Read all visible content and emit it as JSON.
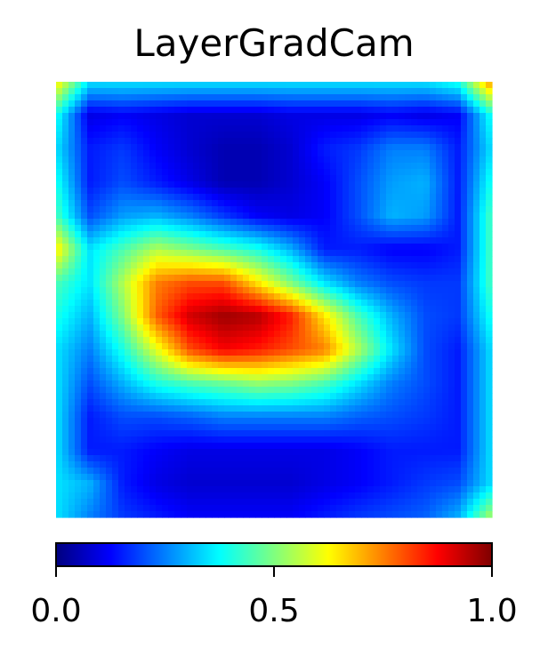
{
  "chart_data": {
    "type": "heatmap",
    "title": "LayerGradCam",
    "colormap": "jet",
    "colormap_stops": [
      "#00007f",
      "#0000ff",
      "#007fff",
      "#00ffff",
      "#7fff7f",
      "#ffff00",
      "#ff7f00",
      "#ff0000",
      "#7f0000"
    ],
    "value_range": [
      0,
      1
    ],
    "colorbar": {
      "orientation": "horizontal",
      "placement": "bottom",
      "ticks": [
        0.0,
        0.5,
        1.0
      ],
      "tick_labels": [
        "0.0",
        "0.5",
        "1.0"
      ]
    },
    "grid_size": [
      14,
      14
    ],
    "values": [
      [
        0.65,
        0.35,
        0.35,
        0.35,
        0.35,
        0.35,
        0.35,
        0.35,
        0.35,
        0.35,
        0.35,
        0.35,
        0.4,
        0.75
      ],
      [
        0.4,
        0.1,
        0.12,
        0.1,
        0.08,
        0.08,
        0.08,
        0.1,
        0.1,
        0.1,
        0.12,
        0.1,
        0.12,
        0.4
      ],
      [
        0.35,
        0.15,
        0.18,
        0.12,
        0.08,
        0.05,
        0.05,
        0.08,
        0.15,
        0.18,
        0.25,
        0.25,
        0.15,
        0.35
      ],
      [
        0.4,
        0.15,
        0.2,
        0.15,
        0.1,
        0.05,
        0.05,
        0.08,
        0.12,
        0.2,
        0.28,
        0.3,
        0.15,
        0.4
      ],
      [
        0.45,
        0.2,
        0.28,
        0.3,
        0.25,
        0.18,
        0.12,
        0.1,
        0.12,
        0.2,
        0.3,
        0.28,
        0.15,
        0.45
      ],
      [
        0.65,
        0.35,
        0.45,
        0.55,
        0.5,
        0.45,
        0.4,
        0.3,
        0.15,
        0.15,
        0.12,
        0.12,
        0.15,
        0.45
      ],
      [
        0.45,
        0.35,
        0.55,
        0.75,
        0.8,
        0.8,
        0.65,
        0.5,
        0.35,
        0.25,
        0.2,
        0.18,
        0.18,
        0.45
      ],
      [
        0.4,
        0.3,
        0.5,
        0.78,
        0.92,
        0.97,
        0.95,
        0.85,
        0.65,
        0.45,
        0.3,
        0.2,
        0.18,
        0.4
      ],
      [
        0.35,
        0.25,
        0.4,
        0.6,
        0.8,
        0.88,
        0.85,
        0.8,
        0.75,
        0.55,
        0.35,
        0.2,
        0.15,
        0.35
      ],
      [
        0.35,
        0.2,
        0.3,
        0.4,
        0.45,
        0.48,
        0.52,
        0.5,
        0.45,
        0.35,
        0.25,
        0.2,
        0.15,
        0.35
      ],
      [
        0.35,
        0.15,
        0.2,
        0.2,
        0.22,
        0.25,
        0.25,
        0.25,
        0.25,
        0.22,
        0.2,
        0.18,
        0.15,
        0.35
      ],
      [
        0.35,
        0.15,
        0.15,
        0.12,
        0.1,
        0.1,
        0.1,
        0.1,
        0.1,
        0.12,
        0.15,
        0.15,
        0.15,
        0.35
      ],
      [
        0.35,
        0.3,
        0.15,
        0.1,
        0.08,
        0.08,
        0.08,
        0.08,
        0.1,
        0.12,
        0.15,
        0.18,
        0.2,
        0.35
      ],
      [
        0.35,
        0.25,
        0.18,
        0.15,
        0.12,
        0.12,
        0.12,
        0.12,
        0.15,
        0.18,
        0.2,
        0.22,
        0.3,
        0.55
      ]
    ]
  }
}
